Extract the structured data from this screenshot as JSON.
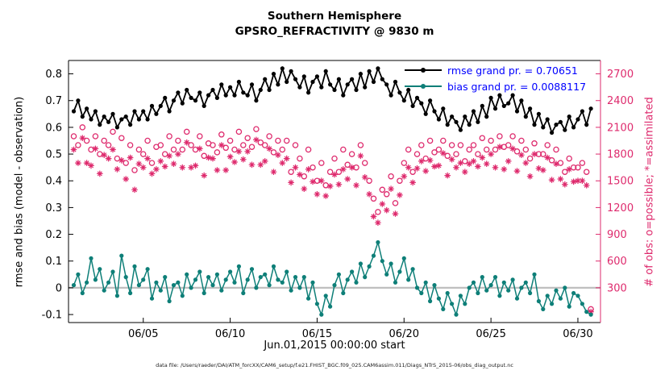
{
  "figure": {
    "caption": "data file: /Users/raeder/DAI/ATM_forcXX/CAM6_setup/f.e21.FHIST_BGC.f09_025.CAM6assim.011/Diags_NTrS_2015-06/obs_diag_output.nc"
  },
  "chart_data": {
    "type": "line",
    "title": "Southern Hemisphere",
    "subtitle": "GPSRO_REFRACTIVITY @ 9830 m",
    "xlabel": "Jun.01,2015 00:00:00 start",
    "ylabel_left": "rmse and bias (model - observation)",
    "ylabel_right": "# of obs: o=possible; *=assimilated",
    "x_domain": [
      0.7,
      31.3
    ],
    "y_left_domain": [
      -0.13,
      0.85
    ],
    "y_left_ticks": [
      0.8,
      0.7,
      0.6,
      0.5,
      0.4,
      0.3,
      0.2,
      0.1,
      0,
      -0.1
    ],
    "y_right_ticks": [
      2700,
      2400,
      2100,
      1800,
      1500,
      1200,
      900,
      600,
      300
    ],
    "right_axis": {
      "count_at_left_zero": 300,
      "counts_per_left_unit": 3000
    },
    "x_ticks": [
      {
        "v": 5,
        "label": "06/05"
      },
      {
        "v": 10,
        "label": "06/10"
      },
      {
        "v": 15,
        "label": "06/15"
      },
      {
        "v": 20,
        "label": "06/20"
      },
      {
        "v": 25,
        "label": "06/25"
      },
      {
        "v": 30,
        "label": "06/30"
      }
    ],
    "x_start": 1.0,
    "x_step": 0.25,
    "n_points": 120,
    "zero_line": 0,
    "colors": {
      "rmse": "#000000",
      "bias": "#0e7f78",
      "obs": "#de2a6d",
      "legend_text": "#0000ff",
      "zero_line": "#bfbfbf",
      "axis": "#000000"
    },
    "legend": [
      {
        "label": "rmse grand pr. = 0.70651",
        "series": "rmse"
      },
      {
        "label": "bias grand pr. = 0.0088117",
        "series": "bias"
      }
    ],
    "series": [
      {
        "name": "possible",
        "axis": "right",
        "marker": "open-circle",
        "color": "#de2a6d",
        "values": [
          2000,
          1900,
          2100,
          1950,
          1850,
          2000,
          1800,
          1950,
          1900,
          2050,
          1750,
          1980,
          1700,
          1900,
          1620,
          1850,
          1800,
          1950,
          1700,
          1880,
          1900,
          1800,
          2000,
          1850,
          1950,
          1850,
          2050,
          1900,
          1850,
          2000,
          1780,
          1920,
          1900,
          1820,
          2020,
          1870,
          1950,
          1850,
          2050,
          1900,
          1980,
          1880,
          2080,
          1930,
          1900,
          2000,
          1820,
          1950,
          1850,
          1950,
          1600,
          1900,
          1750,
          1550,
          1850,
          1650,
          1500,
          1700,
          1450,
          1600,
          1750,
          1600,
          1850,
          1680,
          1800,
          1650,
          1900,
          1700,
          1500,
          1300,
          1150,
          1400,
          1350,
          1550,
          1250,
          1500,
          1700,
          1850,
          1600,
          1800,
          1900,
          1750,
          1950,
          1820,
          1850,
          1950,
          1780,
          1900,
          1800,
          1900,
          1720,
          1850,
          1900,
          1800,
          1980,
          1850,
          1950,
          1850,
          2000,
          1880,
          1900,
          2000,
          1830,
          1950,
          1850,
          1750,
          1920,
          1800,
          1800,
          1900,
          1730,
          1850,
          1700,
          1600,
          1750,
          1650,
          1650,
          1700,
          1600,
          60
        ]
      },
      {
        "name": "assimilated",
        "axis": "right",
        "marker": "asterisk",
        "color": "#de2a6d",
        "values": [
          1850,
          1700,
          1980,
          1700,
          1670,
          1860,
          1580,
          1790,
          1750,
          1850,
          1630,
          1730,
          1520,
          1760,
          1400,
          1690,
          1650,
          1750,
          1580,
          1630,
          1720,
          1660,
          1780,
          1690,
          1800,
          1650,
          1930,
          1650,
          1670,
          1860,
          1560,
          1760,
          1750,
          1620,
          1900,
          1620,
          1770,
          1710,
          1830,
          1740,
          1830,
          1680,
          1960,
          1680,
          1720,
          1860,
          1600,
          1790,
          1700,
          1750,
          1480,
          1650,
          1570,
          1410,
          1630,
          1490,
          1350,
          1500,
          1330,
          1440,
          1570,
          1460,
          1630,
          1520,
          1650,
          1450,
          1780,
          1540,
          1350,
          1100,
          1030,
          1240,
          1170,
          1410,
          1130,
          1340,
          1550,
          1650,
          1480,
          1640,
          1720,
          1610,
          1730,
          1660,
          1670,
          1810,
          1560,
          1740,
          1650,
          1700,
          1600,
          1690,
          1720,
          1660,
          1760,
          1690,
          1800,
          1650,
          1880,
          1630,
          1720,
          1860,
          1610,
          1790,
          1700,
          1550,
          1800,
          1640,
          1620,
          1760,
          1510,
          1690,
          1520,
          1460,
          1630,
          1490,
          1500,
          1500,
          1450,
          30
        ]
      },
      {
        "name": "bias",
        "axis": "left",
        "marker": "dot",
        "color": "#0e7f78",
        "values": [
          0.01,
          0.05,
          -0.02,
          0.02,
          0.11,
          0.03,
          0.07,
          -0.01,
          0.02,
          0.06,
          -0.03,
          0.12,
          0.04,
          -0.02,
          0.08,
          0.01,
          0.03,
          0.07,
          -0.04,
          0.02,
          -0.01,
          0.04,
          -0.05,
          0.01,
          0.02,
          -0.03,
          0.05,
          0.0,
          0.03,
          0.06,
          -0.02,
          0.04,
          0.01,
          0.05,
          -0.01,
          0.03,
          0.06,
          0.02,
          0.08,
          -0.02,
          0.03,
          0.07,
          0.0,
          0.04,
          0.05,
          0.01,
          0.08,
          0.03,
          0.02,
          0.06,
          -0.01,
          0.04,
          0.0,
          0.04,
          -0.04,
          0.02,
          -0.06,
          -0.1,
          -0.03,
          -0.07,
          0.01,
          0.05,
          -0.02,
          0.03,
          0.06,
          0.02,
          0.09,
          0.04,
          0.08,
          0.12,
          0.17,
          0.1,
          0.05,
          0.09,
          0.02,
          0.06,
          0.11,
          0.03,
          0.07,
          0.0,
          -0.02,
          0.02,
          -0.05,
          0.01,
          -0.04,
          -0.08,
          -0.02,
          -0.06,
          -0.1,
          -0.03,
          -0.06,
          0.0,
          0.02,
          -0.02,
          0.04,
          -0.01,
          0.01,
          0.04,
          -0.03,
          0.02,
          -0.01,
          0.03,
          -0.04,
          0.0,
          0.02,
          -0.02,
          0.05,
          -0.05,
          -0.08,
          -0.03,
          -0.06,
          -0.01,
          -0.04,
          0.0,
          -0.07,
          -0.02,
          -0.03,
          -0.06,
          -0.09,
          -0.1
        ]
      },
      {
        "name": "rmse",
        "axis": "left",
        "marker": "dot",
        "color": "#000000",
        "values": [
          0.66,
          0.7,
          0.64,
          0.67,
          0.63,
          0.66,
          0.61,
          0.64,
          0.62,
          0.65,
          0.6,
          0.63,
          0.64,
          0.61,
          0.66,
          0.63,
          0.66,
          0.63,
          0.68,
          0.65,
          0.68,
          0.71,
          0.66,
          0.7,
          0.73,
          0.69,
          0.74,
          0.71,
          0.7,
          0.73,
          0.68,
          0.72,
          0.74,
          0.71,
          0.76,
          0.72,
          0.75,
          0.72,
          0.77,
          0.73,
          0.72,
          0.76,
          0.7,
          0.74,
          0.78,
          0.74,
          0.8,
          0.76,
          0.82,
          0.77,
          0.81,
          0.78,
          0.75,
          0.79,
          0.73,
          0.77,
          0.79,
          0.75,
          0.81,
          0.76,
          0.74,
          0.78,
          0.72,
          0.76,
          0.78,
          0.74,
          0.8,
          0.75,
          0.81,
          0.77,
          0.82,
          0.78,
          0.76,
          0.72,
          0.77,
          0.73,
          0.7,
          0.74,
          0.68,
          0.71,
          0.69,
          0.65,
          0.7,
          0.66,
          0.63,
          0.67,
          0.61,
          0.64,
          0.62,
          0.59,
          0.64,
          0.61,
          0.66,
          0.62,
          0.68,
          0.64,
          0.71,
          0.67,
          0.72,
          0.68,
          0.69,
          0.72,
          0.66,
          0.7,
          0.64,
          0.67,
          0.61,
          0.65,
          0.6,
          0.63,
          0.58,
          0.61,
          0.62,
          0.59,
          0.64,
          0.6,
          0.63,
          0.66,
          0.61,
          0.67
        ]
      }
    ]
  }
}
